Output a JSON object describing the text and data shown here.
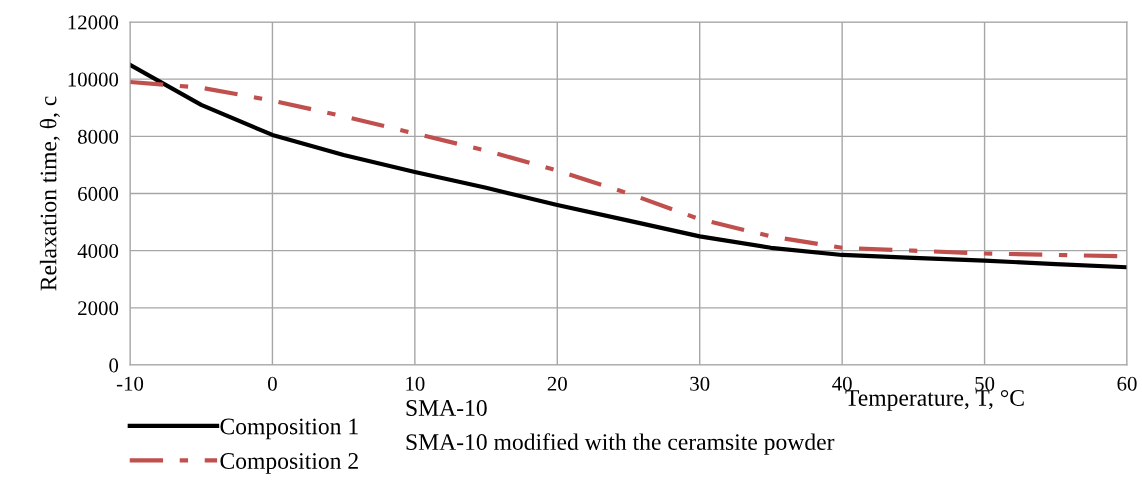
{
  "chart_data": {
    "type": "line",
    "xlabel": "Temperature, T, °C",
    "ylabel": "Relaxation time, θ, c",
    "x": [
      -10,
      -5,
      0,
      5,
      10,
      15,
      20,
      25,
      30,
      35,
      40,
      45,
      50,
      55,
      60
    ],
    "series": [
      {
        "name": "Composition 1",
        "color": "#000000",
        "line_style": "solid",
        "values": [
          10500,
          9100,
          8050,
          7350,
          6750,
          6200,
          5600,
          5050,
          4500,
          4100,
          3850,
          3750,
          3650,
          3530,
          3420
        ]
      },
      {
        "name": "Composition 2",
        "color": "#c0504d",
        "line_style": "dashdot",
        "values": [
          9900,
          9700,
          9250,
          8700,
          8100,
          7500,
          6800,
          6000,
          5100,
          4500,
          4100,
          4000,
          3900,
          3850,
          3800
        ]
      }
    ],
    "annotations": [
      "SMA-10",
      "SMA-10 modified with the ceramsite powder"
    ],
    "xlim": [
      -10,
      60
    ],
    "xticks": [
      -10,
      0,
      10,
      20,
      30,
      40,
      50,
      60
    ],
    "ylim": [
      0,
      12000
    ],
    "yticks": [
      0,
      2000,
      4000,
      6000,
      8000,
      10000,
      12000
    ],
    "grid": true,
    "legend": "bottom left",
    "marker": "none"
  }
}
